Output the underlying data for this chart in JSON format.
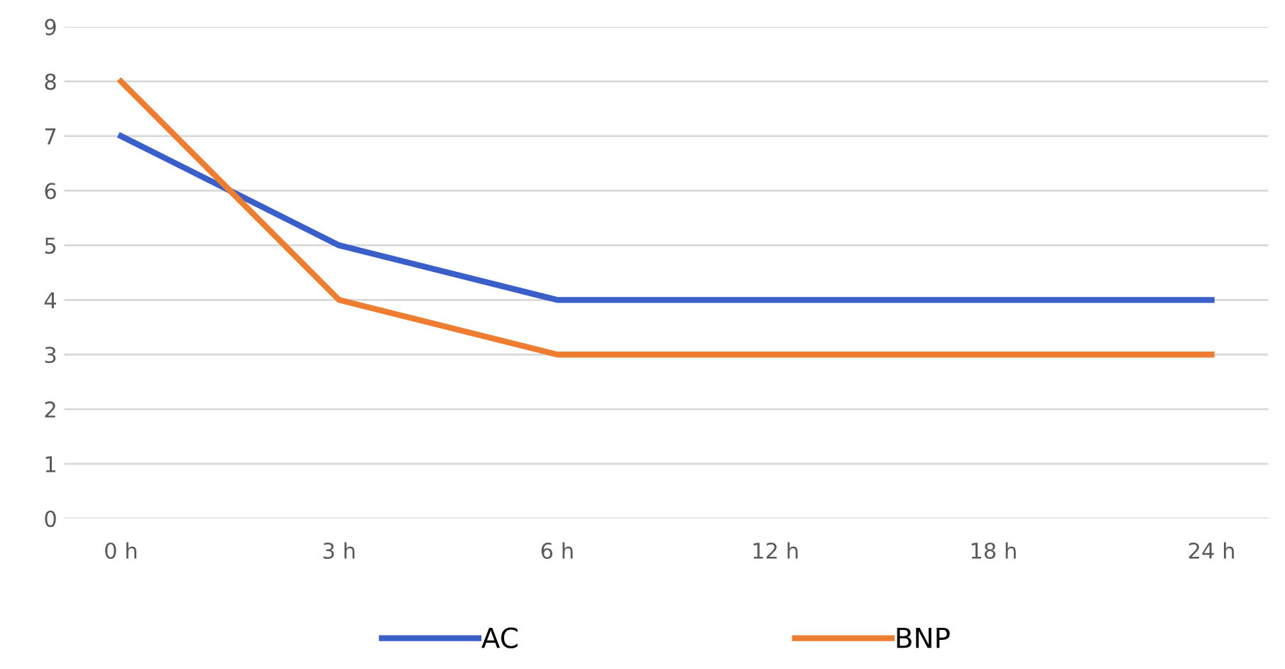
{
  "chart_data": {
    "type": "line",
    "categories": [
      "0 h",
      "3 h",
      "6 h",
      "12 h",
      "18 h",
      "24 h"
    ],
    "series": [
      {
        "name": "AC",
        "color": "#3a5fc8",
        "values": [
          7,
          5,
          4,
          4,
          4,
          4
        ]
      },
      {
        "name": "BNP",
        "color": "#ed7d31",
        "values": [
          8,
          4,
          3,
          3,
          3,
          3
        ]
      }
    ],
    "ylim": [
      0,
      9
    ],
    "yticks": [
      0,
      1,
      2,
      3,
      4,
      5,
      6,
      7,
      8,
      9
    ],
    "grid": "y",
    "legend": "bottom",
    "marker": "none",
    "line_style": "solid"
  }
}
